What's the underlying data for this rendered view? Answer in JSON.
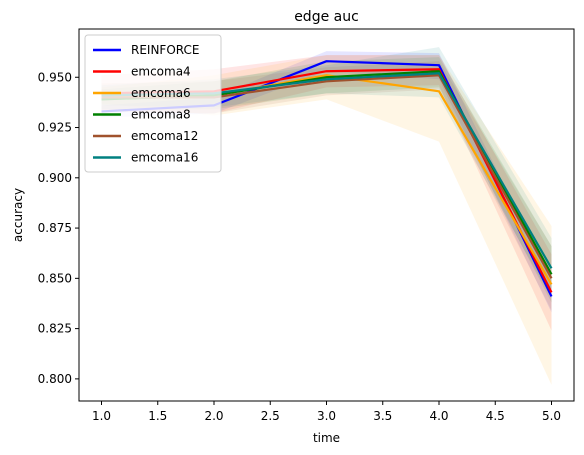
{
  "chart_data": {
    "type": "line",
    "title": "edge auc",
    "xlabel": "time",
    "ylabel": "accuracy",
    "xlim": [
      0.8,
      5.2
    ],
    "ylim": [
      0.789,
      0.974
    ],
    "xticks": [
      "1.0",
      "1.5",
      "2.0",
      "2.5",
      "3.0",
      "3.5",
      "4.0",
      "4.5",
      "5.0"
    ],
    "yticks": [
      "0.800",
      "0.825",
      "0.850",
      "0.875",
      "0.900",
      "0.925",
      "0.950"
    ],
    "grid": false,
    "legend_position": "top-left",
    "x": [
      1,
      2,
      3,
      4,
      5
    ],
    "series": [
      {
        "name": "REINFORCE",
        "color": "#0000ff",
        "values": [
          0.933,
          0.936,
          0.958,
          0.956,
          0.841
        ],
        "band_low": [
          0.93,
          0.932,
          0.953,
          0.949,
          0.833
        ],
        "band_high": [
          0.936,
          0.94,
          0.963,
          0.962,
          0.849
        ]
      },
      {
        "name": "emcoma4",
        "color": "#ff0000",
        "values": [
          0.942,
          0.943,
          0.953,
          0.954,
          0.843
        ],
        "band_low": [
          0.933,
          0.932,
          0.945,
          0.946,
          0.824
        ],
        "band_high": [
          0.951,
          0.954,
          0.961,
          0.961,
          0.862
        ]
      },
      {
        "name": "emcoma6",
        "color": "#ffa500",
        "values": [
          0.941,
          0.941,
          0.951,
          0.943,
          0.847
        ],
        "band_low": [
          0.937,
          0.931,
          0.939,
          0.918,
          0.797
        ],
        "band_high": [
          0.945,
          0.951,
          0.961,
          0.961,
          0.876
        ]
      },
      {
        "name": "emcoma8",
        "color": "#008000",
        "values": [
          0.939,
          0.941,
          0.95,
          0.953,
          0.852
        ],
        "band_low": [
          0.934,
          0.934,
          0.942,
          0.945,
          0.838
        ],
        "band_high": [
          0.944,
          0.948,
          0.958,
          0.96,
          0.866
        ]
      },
      {
        "name": "emcoma12",
        "color": "#a0522d",
        "values": [
          0.94,
          0.94,
          0.948,
          0.951,
          0.85
        ],
        "band_low": [
          0.933,
          0.932,
          0.941,
          0.944,
          0.834
        ],
        "band_high": [
          0.947,
          0.948,
          0.955,
          0.958,
          0.866
        ]
      },
      {
        "name": "emcoma16",
        "color": "#008080",
        "values": [
          0.941,
          0.942,
          0.949,
          0.952,
          0.855
        ],
        "band_low": [
          0.936,
          0.935,
          0.942,
          0.94,
          0.84
        ],
        "band_high": [
          0.946,
          0.949,
          0.956,
          0.965,
          0.87
        ]
      }
    ]
  }
}
